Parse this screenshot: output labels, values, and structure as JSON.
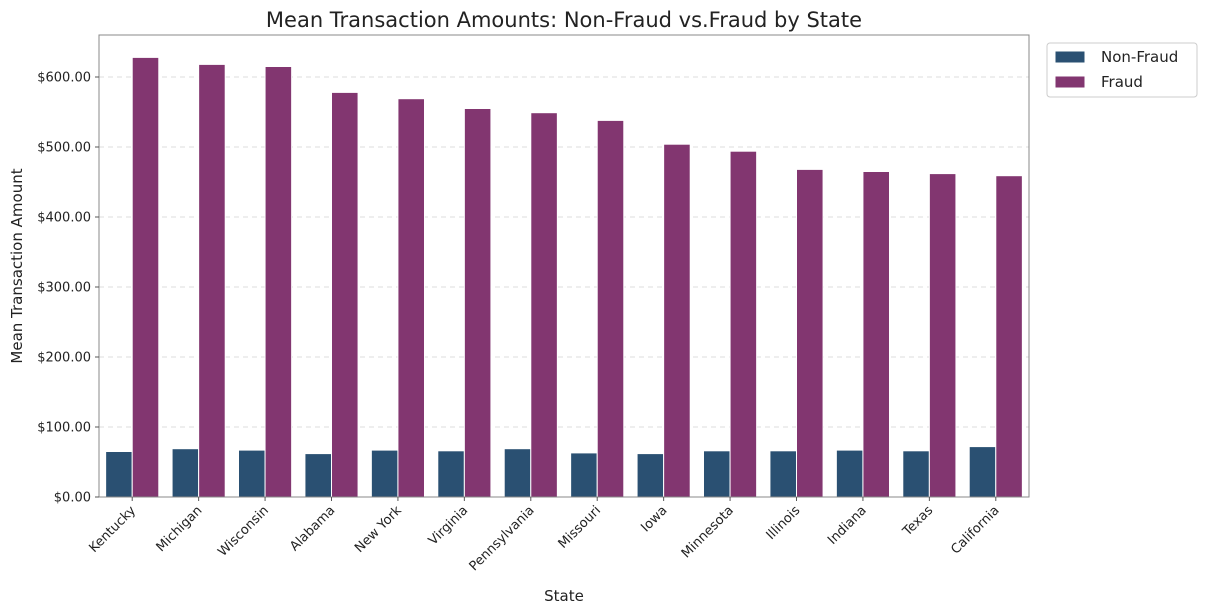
{
  "chart_data": {
    "type": "bar",
    "title": "Mean Transaction Amounts: Non-Fraud vs.Fraud by State",
    "xlabel": "State",
    "ylabel": "Mean Transaction Amount",
    "ylim": [
      0,
      660
    ],
    "yticks": [
      0,
      100,
      200,
      300,
      400,
      500,
      600
    ],
    "ytick_labels": [
      "$0.00",
      "$100.00",
      "$200.00",
      "$300.00",
      "$400.00",
      "$500.00",
      "$600.00"
    ],
    "grid": "horizontal dashed",
    "legend_position": "outside top-right",
    "categories": [
      "Kentucky",
      "Michigan",
      "Wisconsin",
      "Alabama",
      "New York",
      "Virginia",
      "Pennsylvania",
      "Missouri",
      "Iowa",
      "Minnesota",
      "Illinois",
      "Indiana",
      "Texas",
      "California"
    ],
    "series": [
      {
        "name": "Non-Fraud",
        "color": "#2a5072",
        "values": [
          65,
          69,
          67,
          62,
          67,
          66,
          69,
          63,
          62,
          66,
          66,
          67,
          66,
          72
        ]
      },
      {
        "name": "Fraud",
        "color": "#823670",
        "values": [
          628,
          618,
          615,
          578,
          569,
          555,
          549,
          538,
          504,
          494,
          468,
          465,
          462,
          459
        ]
      }
    ]
  }
}
